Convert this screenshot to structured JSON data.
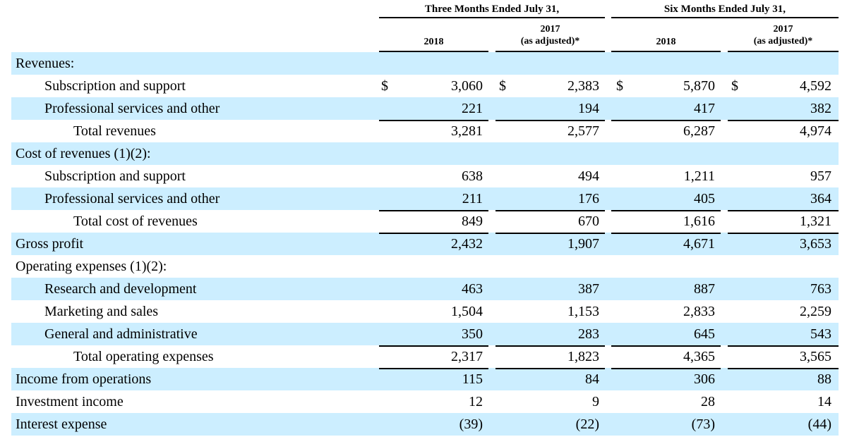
{
  "header": {
    "group1": "Three Months Ended July 31,",
    "group2": "Six Months Ended July 31,",
    "columns": [
      {
        "year": "2018",
        "note": ""
      },
      {
        "year": "2017",
        "note": "(as adjusted)*"
      },
      {
        "year": "2018",
        "note": ""
      },
      {
        "year": "2017",
        "note": "(as adjusted)*"
      }
    ]
  },
  "rows": [
    {
      "label": "Revenues:",
      "indent": 0,
      "shaded": true,
      "values": [
        "",
        "",
        "",
        ""
      ]
    },
    {
      "label": "Subscription and support",
      "indent": 1,
      "shaded": false,
      "dollar": "$",
      "values": [
        "3,060",
        "2,383",
        "5,870",
        "4,592"
      ]
    },
    {
      "label": "Professional services and other",
      "indent": 1,
      "shaded": true,
      "values": [
        "221",
        "194",
        "417",
        "382"
      ]
    },
    {
      "label": "Total revenues",
      "indent": 2,
      "shaded": false,
      "rule_top": true,
      "values": [
        "3,281",
        "2,577",
        "6,287",
        "4,974"
      ]
    },
    {
      "label": "Cost of revenues (1)(2):",
      "indent": 0,
      "shaded": true,
      "values": [
        "",
        "",
        "",
        ""
      ]
    },
    {
      "label": "Subscription and support",
      "indent": 1,
      "shaded": false,
      "values": [
        "638",
        "494",
        "1,211",
        "957"
      ]
    },
    {
      "label": "Professional services and other",
      "indent": 1,
      "shaded": true,
      "values": [
        "211",
        "176",
        "405",
        "364"
      ]
    },
    {
      "label": "Total cost of revenues",
      "indent": 2,
      "shaded": false,
      "rule_top": true,
      "values": [
        "849",
        "670",
        "1,616",
        "1,321"
      ]
    },
    {
      "label": "Gross profit",
      "indent": 0,
      "shaded": true,
      "rule_top": true,
      "values": [
        "2,432",
        "1,907",
        "4,671",
        "3,653"
      ]
    },
    {
      "label": "Operating expenses (1)(2):",
      "indent": 0,
      "shaded": false,
      "values": [
        "",
        "",
        "",
        ""
      ]
    },
    {
      "label": "Research and development",
      "indent": 1,
      "shaded": true,
      "values": [
        "463",
        "387",
        "887",
        "763"
      ]
    },
    {
      "label": "Marketing and sales",
      "indent": 1,
      "shaded": false,
      "values": [
        "1,504",
        "1,153",
        "2,833",
        "2,259"
      ]
    },
    {
      "label": "General and administrative",
      "indent": 1,
      "shaded": true,
      "values": [
        "350",
        "283",
        "645",
        "543"
      ]
    },
    {
      "label": "Total operating expenses",
      "indent": 2,
      "shaded": false,
      "rule_top": true,
      "values": [
        "2,317",
        "1,823",
        "4,365",
        "3,565"
      ]
    },
    {
      "label": "Income from operations",
      "indent": 0,
      "shaded": true,
      "rule_top": true,
      "values": [
        "115",
        "84",
        "306",
        "88"
      ]
    },
    {
      "label": "Investment income",
      "indent": 0,
      "shaded": false,
      "values": [
        "12",
        "9",
        "28",
        "14"
      ]
    },
    {
      "label": "Interest expense",
      "indent": 0,
      "shaded": true,
      "values": [
        "(39)",
        "(22)",
        "(73)",
        "(44)"
      ]
    }
  ]
}
